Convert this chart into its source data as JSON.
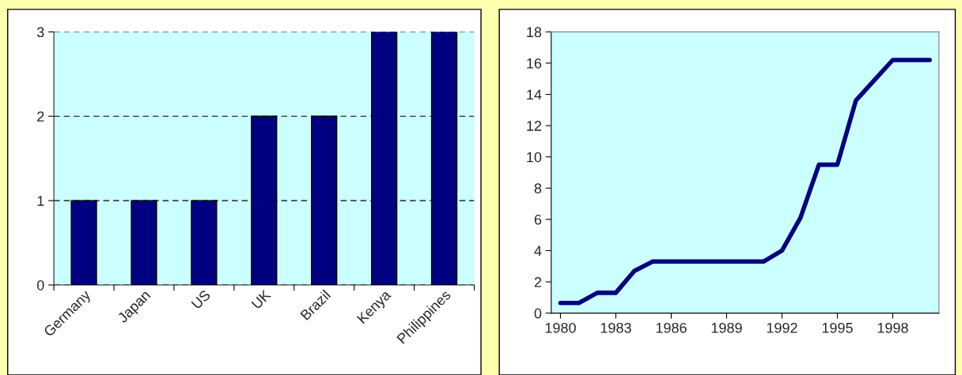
{
  "chart_data": [
    {
      "type": "bar",
      "categories": [
        "Germany",
        "Japan",
        "US",
        "UK",
        "Brazil",
        "Kenya",
        "Philippines"
      ],
      "values": [
        1,
        1,
        1,
        2,
        2,
        3,
        3
      ],
      "color": "#000080",
      "ylim": [
        0,
        3
      ],
      "yticks": [
        0,
        1,
        2,
        3
      ],
      "grid": "y"
    },
    {
      "type": "line",
      "x": [
        1980,
        1981,
        1982,
        1983,
        1984,
        1985,
        1986,
        1987,
        1988,
        1989,
        1990,
        1991,
        1992,
        1993,
        1994,
        1995,
        1996,
        1997,
        1998,
        1999,
        2000
      ],
      "values": [
        0.65,
        0.65,
        1.3,
        1.3,
        2.7,
        3.3,
        3.3,
        3.3,
        3.3,
        3.3,
        3.3,
        3.3,
        4.0,
        6.1,
        9.5,
        9.5,
        13.6,
        14.9,
        16.2,
        16.2,
        16.2
      ],
      "color": "#000080",
      "xlim": [
        1979.5,
        2000.5
      ],
      "xticks": [
        1980,
        1983,
        1986,
        1989,
        1992,
        1995,
        1998
      ],
      "ylim": [
        0,
        18
      ],
      "yticks": [
        0,
        2,
        4,
        6,
        8,
        10,
        12,
        14,
        16,
        18
      ],
      "grid": false
    }
  ]
}
